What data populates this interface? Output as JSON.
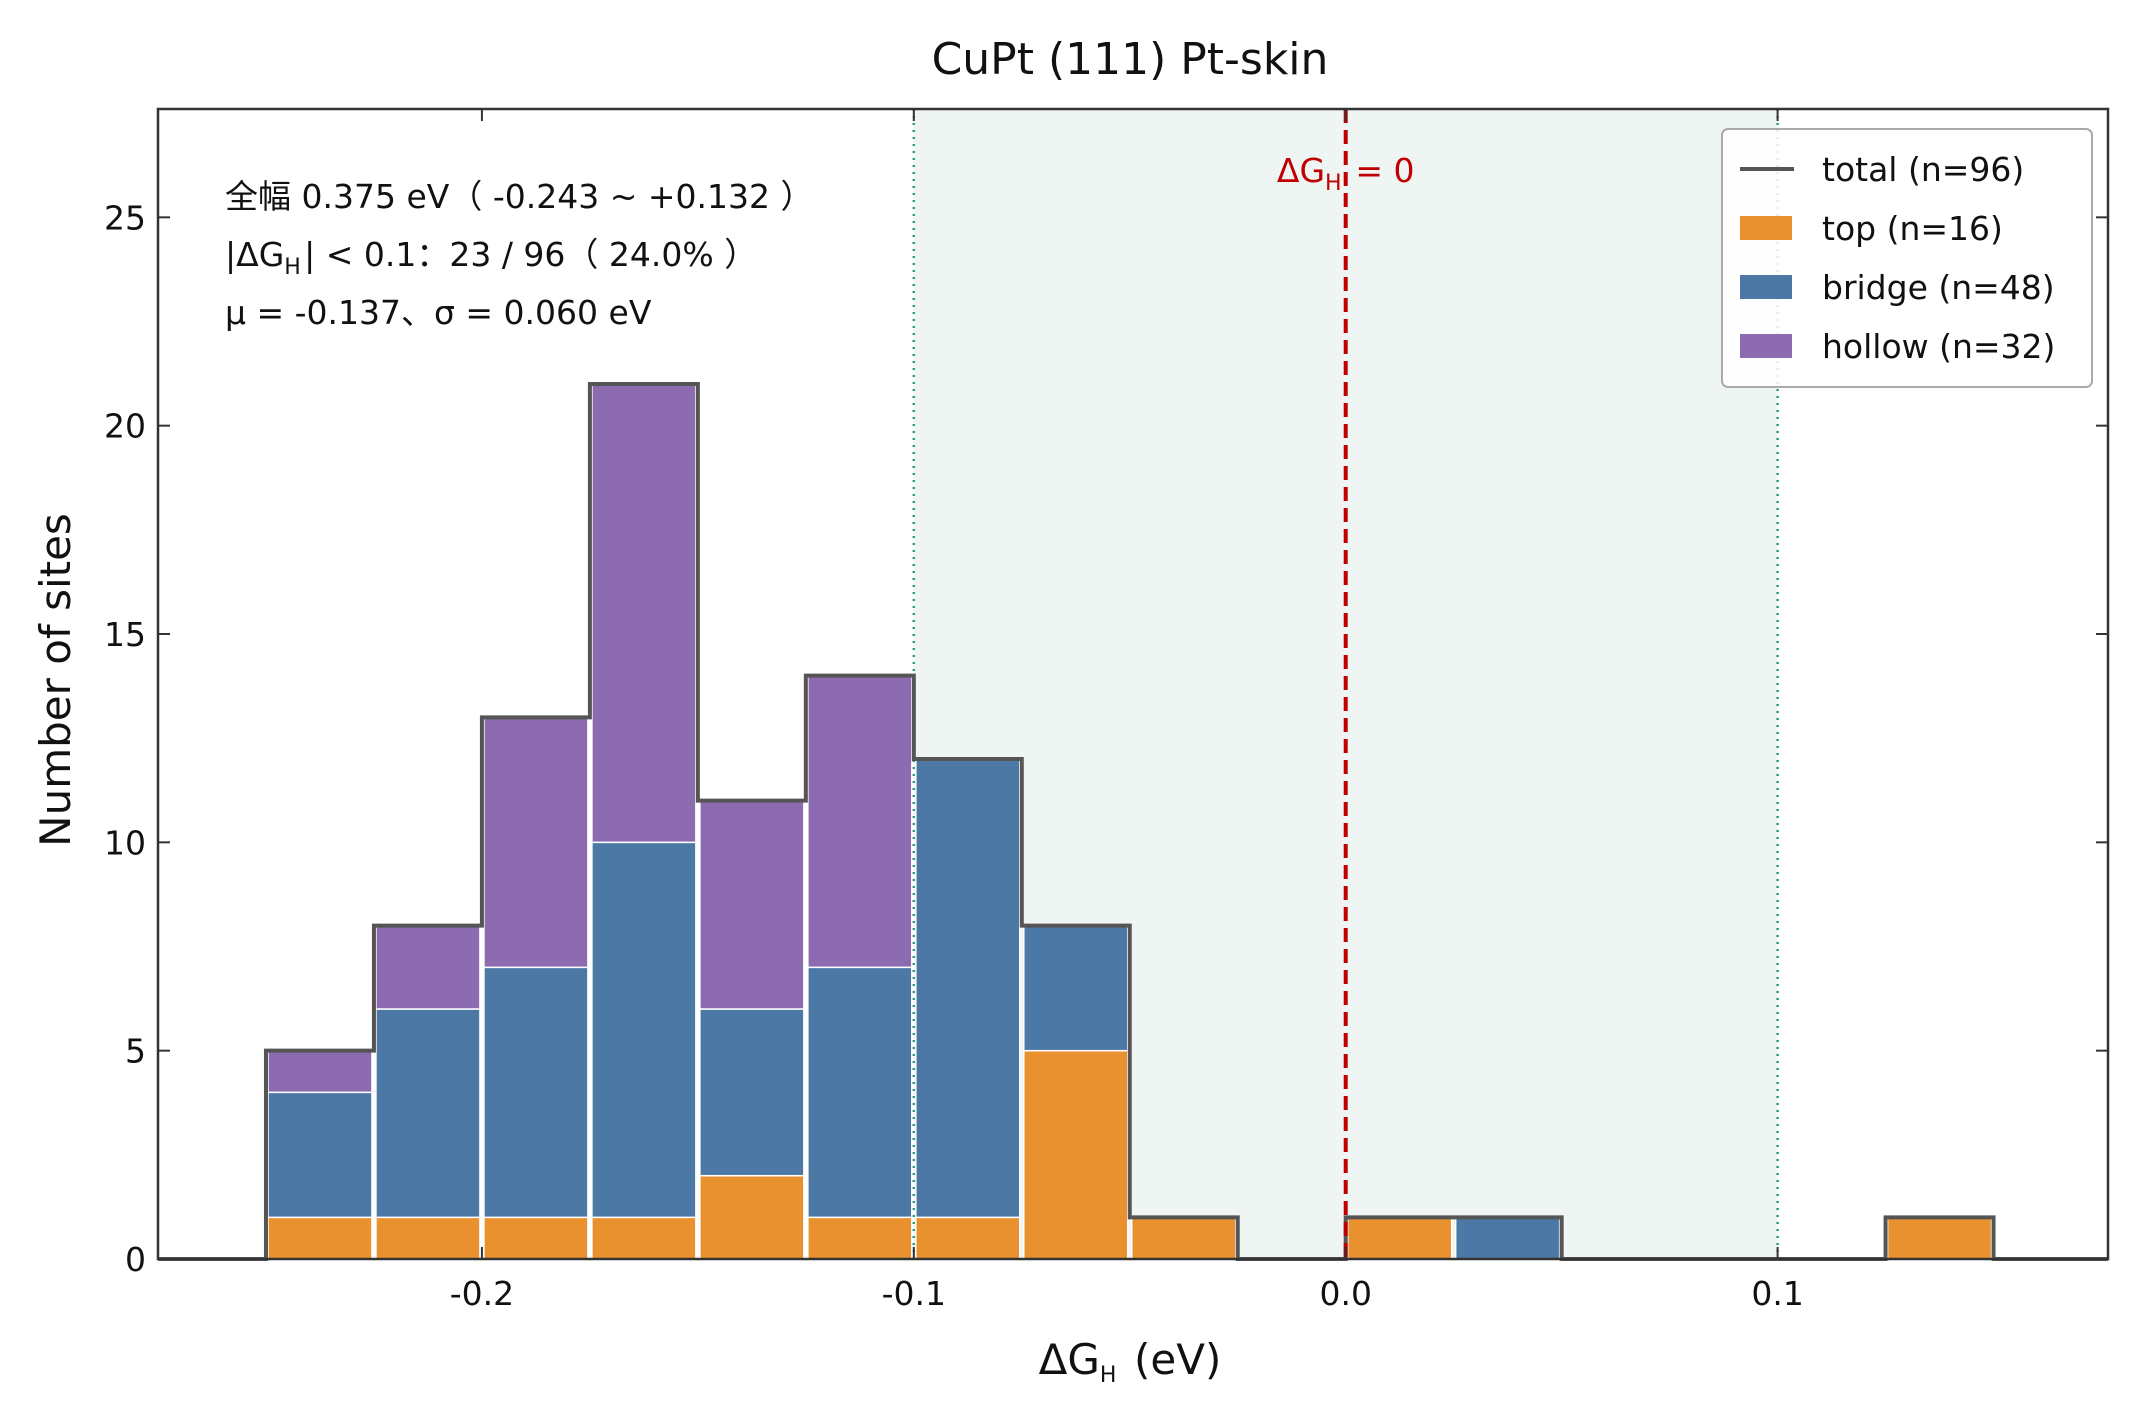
{
  "chart_data": {
    "type": "bar",
    "subtype": "stacked-histogram",
    "title": "CuPt (111) Pt-skin",
    "xlabel": "ΔG_H  (eV)",
    "ylabel": "Number of sites",
    "xlim": [
      -0.275,
      0.1765
    ],
    "ylim": [
      0,
      27.6
    ],
    "xticks": [
      "-0.2",
      "-0.1",
      "0.0",
      "0.1"
    ],
    "xtick_values": [
      -0.2,
      -0.1,
      0.0,
      0.1
    ],
    "yticks": [
      "0",
      "5",
      "10",
      "15",
      "20",
      "25"
    ],
    "ytick_values": [
      0,
      5,
      10,
      15,
      20,
      25
    ],
    "bin_edges": [
      -0.25,
      -0.225,
      -0.2,
      -0.175,
      -0.15,
      -0.125,
      -0.1,
      -0.075,
      -0.05,
      -0.025,
      0.0,
      0.025,
      0.05,
      0.075,
      0.1,
      0.125,
      0.15
    ],
    "series": [
      {
        "name": "top (n=16)",
        "key": "top",
        "color": "#e8912e",
        "values": [
          1,
          1,
          1,
          1,
          2,
          1,
          1,
          5,
          1,
          0,
          1,
          0,
          0,
          0,
          0,
          1
        ]
      },
      {
        "name": "bridge (n=48)",
        "key": "bridge",
        "color": "#4c78a6",
        "values": [
          3,
          5,
          6,
          9,
          4,
          6,
          11,
          3,
          0,
          0,
          0,
          1,
          0,
          0,
          0,
          0
        ]
      },
      {
        "name": "hollow (n=32)",
        "key": "hollow",
        "color": "#8c6bb1",
        "values": [
          1,
          2,
          6,
          11,
          5,
          7,
          0,
          0,
          0,
          0,
          0,
          0,
          0,
          0,
          0,
          0
        ]
      }
    ],
    "total": {
      "name": "total (n=96)",
      "color": "#555555",
      "values": [
        5,
        8,
        13,
        21,
        11,
        14,
        12,
        8,
        1,
        0,
        1,
        1,
        0,
        0,
        0,
        1
      ]
    },
    "shaded_region": {
      "x0": -0.1,
      "x1": 0.1,
      "color": "#eef5f2"
    },
    "bound_lines": {
      "values": [
        -0.1,
        0.1
      ],
      "color": "#2a9d78"
    },
    "zero_line": {
      "x": 0.0,
      "label": "ΔG_H = 0",
      "color": "#c00000"
    },
    "annotations": [
      "全幅 0.375 eV（ -0.243 ~ +0.132 ）",
      "|ΔG_H| < 0.1：23 / 96（ 24.0% ）",
      "μ = -0.137、σ = 0.060 eV"
    ],
    "legend_position": "top-right",
    "grid": false
  }
}
